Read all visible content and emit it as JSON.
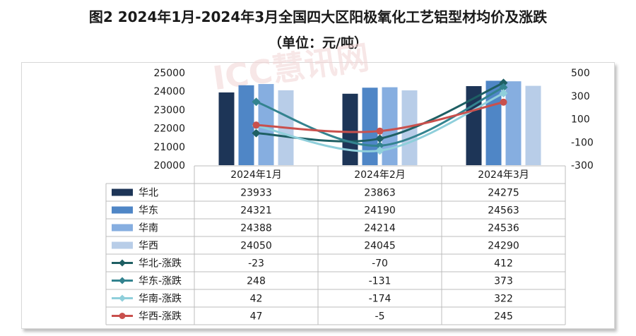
{
  "title_line1": "图2  2024年1月-2024年3月全国四大区阳极氧化工艺铝型材均价及涨跌",
  "title_line2": "（单位：元/吨）",
  "watermark": "ICC慧讯网",
  "chart_data": {
    "type": "bar",
    "categories": [
      "2024年1月",
      "2024年2月",
      "2024年3月"
    ],
    "y_left_ticks": [
      "25000",
      "24000",
      "23000",
      "22000",
      "21000",
      "20000"
    ],
    "y_right_ticks": [
      "500",
      "300",
      "100",
      "-100",
      "-300"
    ],
    "ylim_left": [
      20000,
      25000
    ],
    "ylim_right": [
      -300,
      500
    ],
    "series": [
      {
        "name": "华北",
        "type": "bar",
        "axis": "left",
        "color": "#1d3557",
        "values": [
          23933,
          23863,
          24275
        ]
      },
      {
        "name": "华东",
        "type": "bar",
        "axis": "left",
        "color": "#4f86c6",
        "values": [
          24321,
          24190,
          24563
        ]
      },
      {
        "name": "华南",
        "type": "bar",
        "axis": "left",
        "color": "#86aee0",
        "values": [
          24388,
          24214,
          24536
        ]
      },
      {
        "name": "华西",
        "type": "bar",
        "axis": "left",
        "color": "#b8cde8",
        "values": [
          24050,
          24045,
          24290
        ]
      },
      {
        "name": "华北-涨跌",
        "type": "line",
        "axis": "right",
        "color": "#1e5f63",
        "values": [
          -23,
          -70,
          412
        ]
      },
      {
        "name": "华东-涨跌",
        "type": "line",
        "axis": "right",
        "color": "#33838f",
        "values": [
          248,
          -131,
          373
        ]
      },
      {
        "name": "华南-涨跌",
        "type": "line",
        "axis": "right",
        "color": "#8fcfdb",
        "values": [
          42,
          -174,
          322
        ]
      },
      {
        "name": "华西-涨跌",
        "type": "line",
        "axis": "right",
        "color": "#c9504d",
        "values": [
          47,
          -5,
          245
        ]
      }
    ],
    "table": [
      [
        "23933",
        "23863",
        "24275"
      ],
      [
        "24321",
        "24190",
        "24563"
      ],
      [
        "24388",
        "24214",
        "24536"
      ],
      [
        "24050",
        "24045",
        "24290"
      ],
      [
        "-23",
        "-70",
        "412"
      ],
      [
        "248",
        "-131",
        "373"
      ],
      [
        "42",
        "-174",
        "322"
      ],
      [
        "47",
        "-5",
        "245"
      ]
    ]
  }
}
